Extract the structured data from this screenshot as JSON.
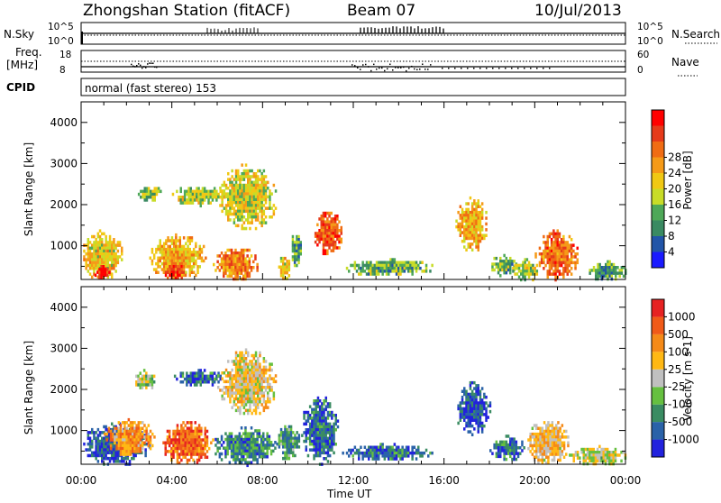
{
  "header": {
    "station": "Zhongshan Station (fitACF)",
    "beam": "Beam 07",
    "date": "10/Jul/2013"
  },
  "strips": {
    "nsky_label": "N.Sky",
    "nsky_ticks": [
      "10^5",
      "10^0"
    ],
    "nsearch_label": "N.Search",
    "nsearch_ticks": [
      "10^5",
      "10^0"
    ],
    "freq_label_1": "Freq.",
    "freq_label_2": "[MHz]",
    "freq_ticks": [
      "18",
      "8"
    ],
    "nave_label": "Nave",
    "nave_ticks": [
      "60",
      "0"
    ],
    "cpid_label": "CPID",
    "cpid_value": "normal (fast stereo) 153"
  },
  "chart_data": [
    {
      "type": "heatmap",
      "name": "power",
      "xlabel": "",
      "ylabel": "Slant Range [km]",
      "x_ticks": [
        "00:00",
        "04:00",
        "08:00",
        "12:00",
        "16:00",
        "20:00",
        "00:00"
      ],
      "xlim_hours": [
        0,
        24
      ],
      "y_ticks": [
        1000,
        2000,
        3000,
        4000
      ],
      "ylim": [
        180,
        4500
      ],
      "colorbar_label": "Power [dB]",
      "colorbar_ticks": [
        "4",
        "8",
        "12",
        "16",
        "20",
        "24",
        "28"
      ],
      "colorbar_colors": [
        "#1a1aff",
        "#2255a8",
        "#3a8a62",
        "#4ea858",
        "#c8dc28",
        "#f0c814",
        "#f59a18",
        "#f06c14",
        "#e63a1a",
        "#ff0000"
      ],
      "features": [
        {
          "t": [
            0.0,
            1.8
          ],
          "r": [
            180,
            1400
          ],
          "level": 0.55
        },
        {
          "t": [
            0.5,
            1.2
          ],
          "r": [
            180,
            600
          ],
          "level": 0.9
        },
        {
          "t": [
            2.5,
            3.5
          ],
          "r": [
            2100,
            2500
          ],
          "level": 0.4
        },
        {
          "t": [
            3.0,
            5.5
          ],
          "r": [
            180,
            1300
          ],
          "level": 0.6
        },
        {
          "t": [
            3.6,
            4.6
          ],
          "r": [
            180,
            600
          ],
          "level": 0.85
        },
        {
          "t": [
            4.0,
            6.3
          ],
          "r": [
            2000,
            2500
          ],
          "level": 0.45
        },
        {
          "t": [
            5.8,
            7.8
          ],
          "r": [
            180,
            1000
          ],
          "level": 0.7
        },
        {
          "t": [
            6.0,
            8.6
          ],
          "r": [
            1400,
            3000
          ],
          "level": 0.5
        },
        {
          "t": [
            8.6,
            9.2
          ],
          "r": [
            180,
            800
          ],
          "level": 0.55
        },
        {
          "t": [
            9.2,
            9.7
          ],
          "r": [
            500,
            1400
          ],
          "level": 0.3
        },
        {
          "t": [
            10.2,
            11.5
          ],
          "r": [
            800,
            1900
          ],
          "level": 0.8
        },
        {
          "t": [
            11.5,
            15.5
          ],
          "r": [
            300,
            700
          ],
          "level": 0.35
        },
        {
          "t": [
            16.5,
            17.9
          ],
          "r": [
            900,
            2200
          ],
          "level": 0.6
        },
        {
          "t": [
            18.0,
            19.2
          ],
          "r": [
            300,
            800
          ],
          "level": 0.35
        },
        {
          "t": [
            19.0,
            20.2
          ],
          "r": [
            180,
            700
          ],
          "level": 0.45
        },
        {
          "t": [
            20.0,
            21.9
          ],
          "r": [
            200,
            1400
          ],
          "level": 0.75
        },
        {
          "t": [
            22.3,
            24.0
          ],
          "r": [
            180,
            650
          ],
          "level": 0.3
        }
      ]
    },
    {
      "type": "heatmap",
      "name": "velocity",
      "xlabel": "Time UT",
      "ylabel": "Slant Range [km]",
      "x_ticks": [
        "00:00",
        "04:00",
        "08:00",
        "12:00",
        "16:00",
        "20:00",
        "00:00"
      ],
      "xlim_hours": [
        0,
        24
      ],
      "y_ticks": [
        1000,
        2000,
        3000,
        4000
      ],
      "ylim": [
        180,
        4500
      ],
      "colorbar_label": "Velocity [m s-1]",
      "colorbar_ticks": [
        "1000",
        "500",
        "100",
        "25",
        "-25",
        "-100",
        "-500",
        "-1000"
      ],
      "colorbar_colors": [
        "#2222dd",
        "#2a62a8",
        "#3a8c62",
        "#66c040",
        "#c0c0c0",
        "#ffb814",
        "#f58a18",
        "#f05a18",
        "#e62222"
      ],
      "features": [
        {
          "t": [
            0.0,
            3.0
          ],
          "r": [
            180,
            1200
          ],
          "level": 0.15
        },
        {
          "t": [
            1.0,
            3.2
          ],
          "r": [
            400,
            1300
          ],
          "level": 0.7
        },
        {
          "t": [
            2.3,
            3.3
          ],
          "r": [
            2000,
            2500
          ],
          "level": 0.45
        },
        {
          "t": [
            3.5,
            5.8
          ],
          "r": [
            180,
            1300
          ],
          "level": 0.8
        },
        {
          "t": [
            4.0,
            6.3
          ],
          "r": [
            2100,
            2500
          ],
          "level": 0.2
        },
        {
          "t": [
            5.8,
            8.6
          ],
          "r": [
            180,
            1100
          ],
          "level": 0.25
        },
        {
          "t": [
            6.0,
            8.6
          ],
          "r": [
            1400,
            3000
          ],
          "level": 0.55
        },
        {
          "t": [
            8.6,
            9.6
          ],
          "r": [
            300,
            1200
          ],
          "level": 0.3
        },
        {
          "t": [
            9.7,
            11.3
          ],
          "r": [
            200,
            1900
          ],
          "level": 0.2
        },
        {
          "t": [
            11.5,
            15.5
          ],
          "r": [
            300,
            700
          ],
          "level": 0.2
        },
        {
          "t": [
            16.5,
            18.0
          ],
          "r": [
            900,
            2200
          ],
          "level": 0.15
        },
        {
          "t": [
            18.0,
            19.5
          ],
          "r": [
            300,
            900
          ],
          "level": 0.2
        },
        {
          "t": [
            19.5,
            21.5
          ],
          "r": [
            200,
            1300
          ],
          "level": 0.6
        },
        {
          "t": [
            21.5,
            24.0
          ],
          "r": [
            180,
            650
          ],
          "level": 0.5
        }
      ]
    }
  ]
}
